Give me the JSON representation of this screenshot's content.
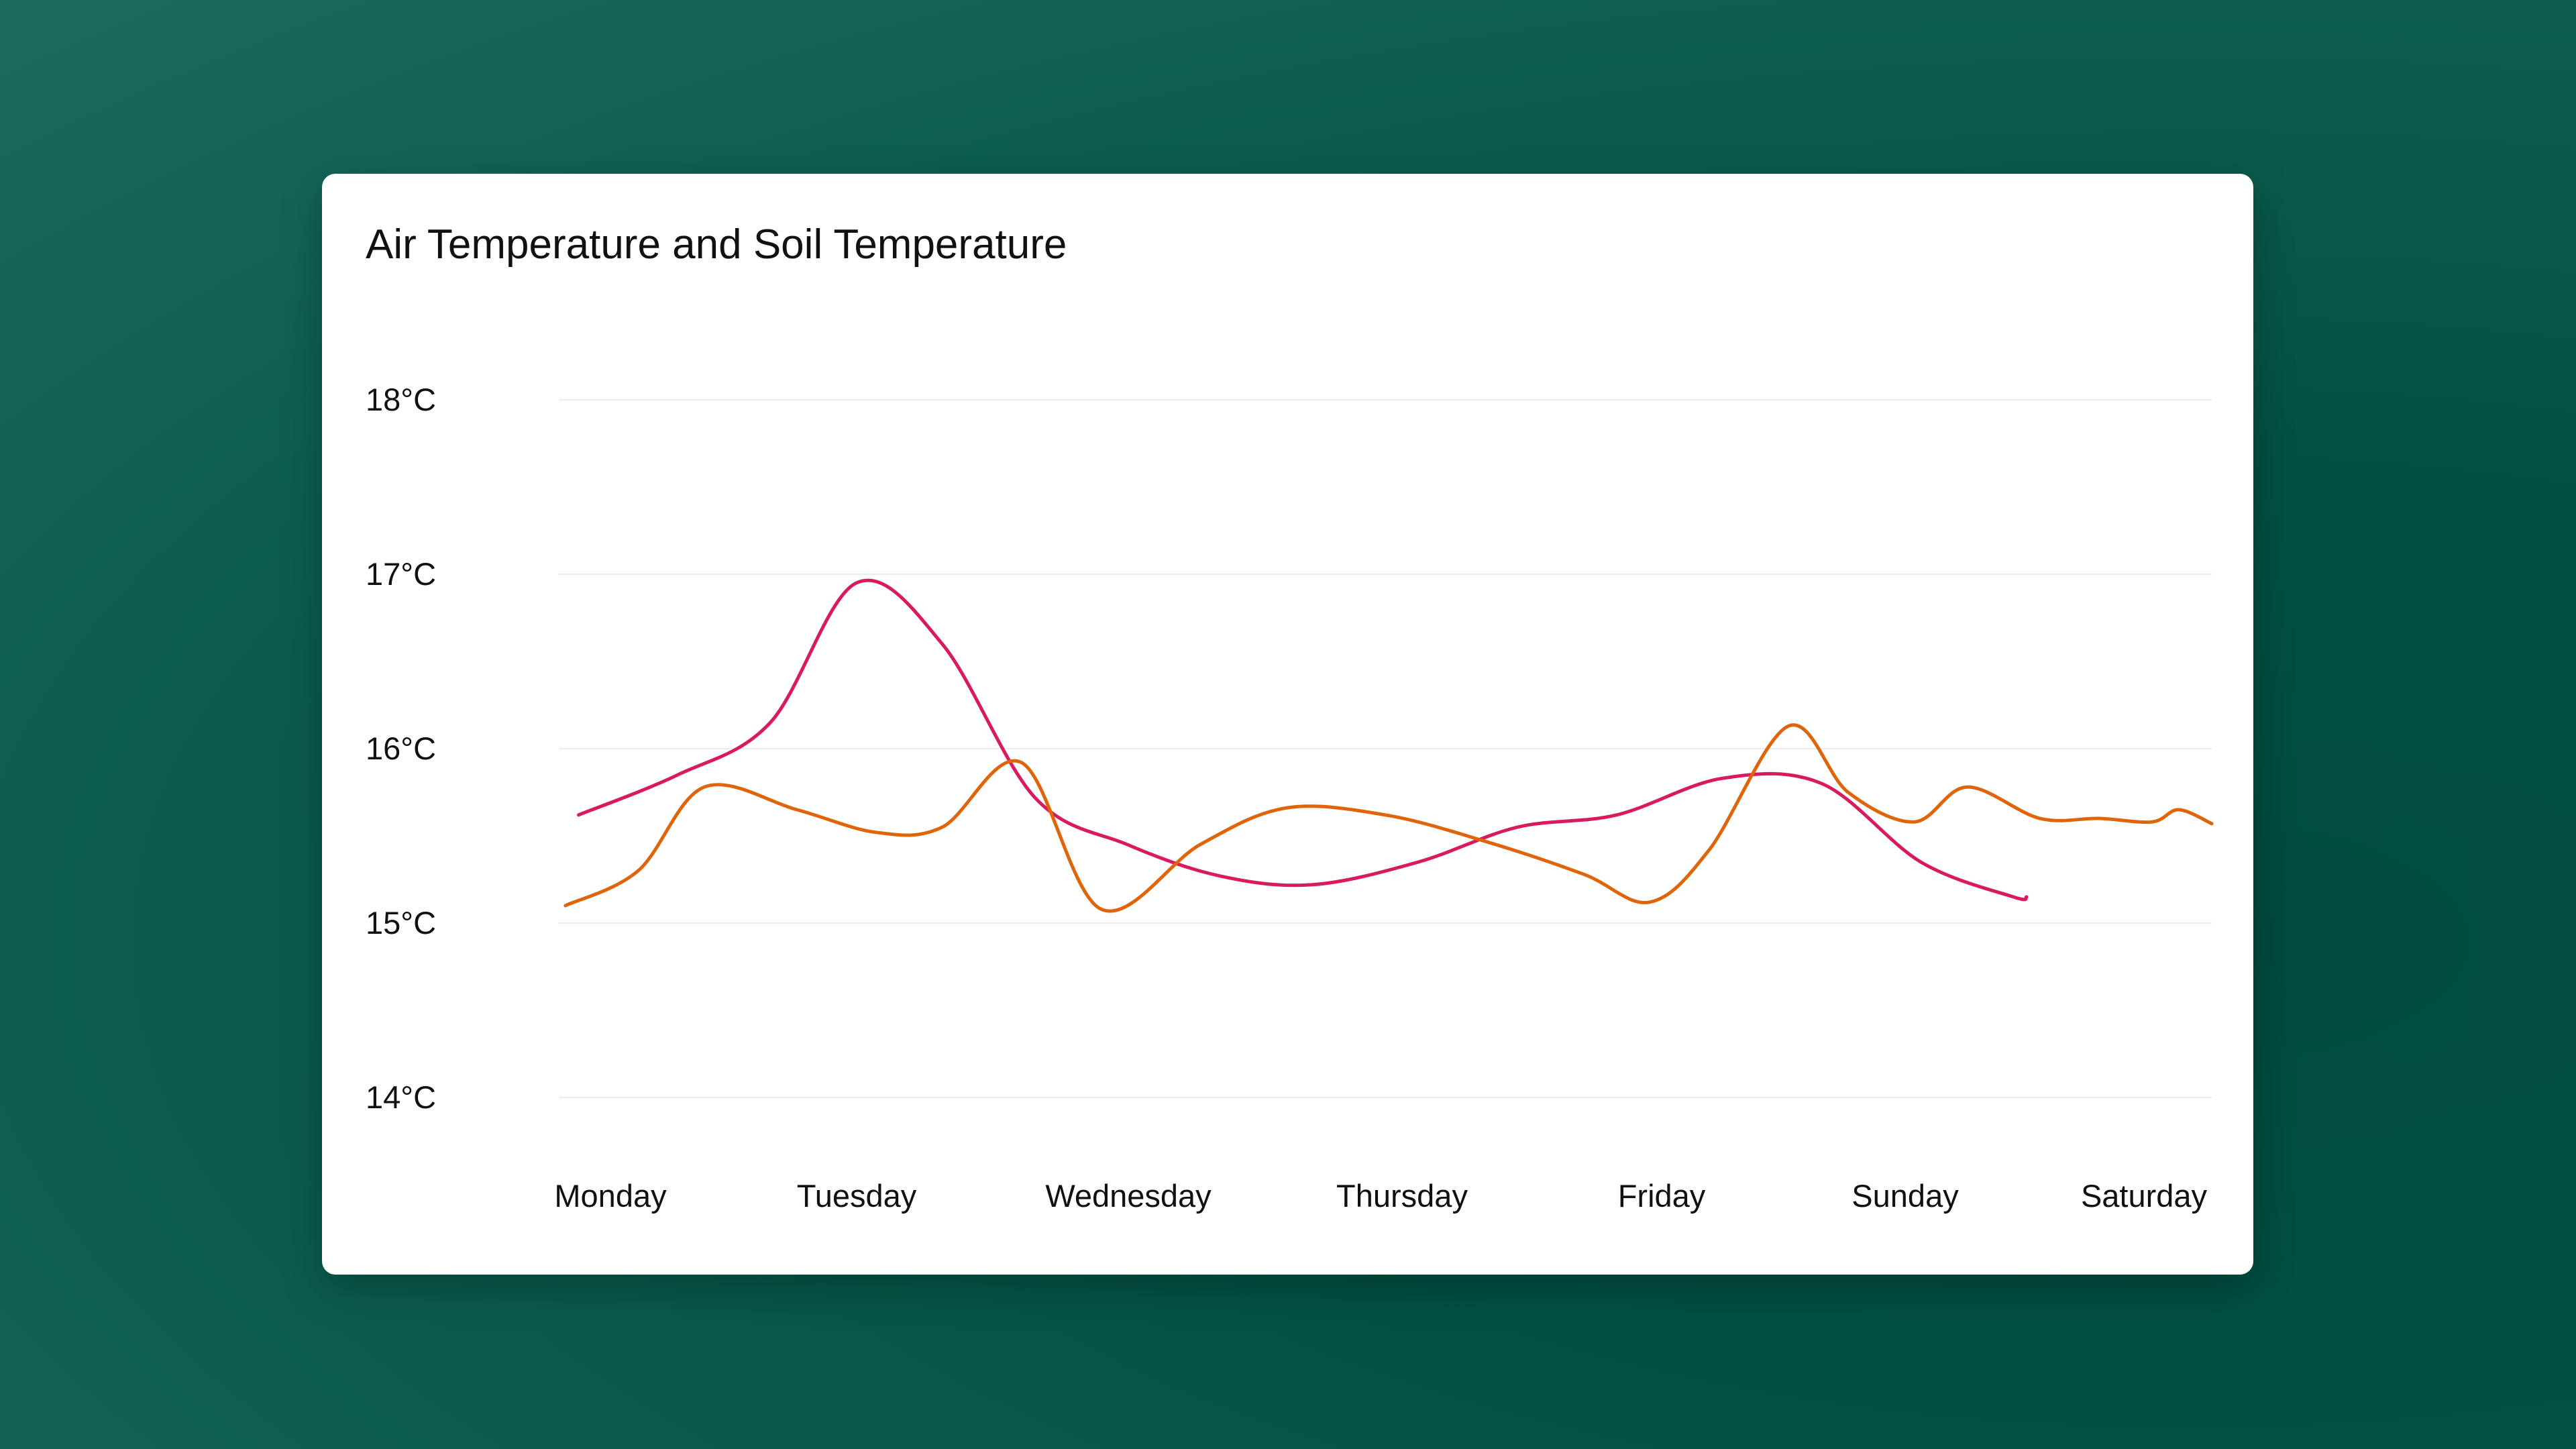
{
  "chart_data": {
    "type": "line",
    "title": "Air Temperature and Soil Temperature",
    "xlabel": "",
    "ylabel": "",
    "x": [
      "Monday",
      "Tuesday",
      "Wednesday",
      "Thursday",
      "Friday",
      "Sunday",
      "Saturday"
    ],
    "y_ticks": [
      "14°C",
      "15°C",
      "16°C",
      "17°C",
      "18°C"
    ],
    "ylim": [
      14,
      18
    ],
    "grid": true,
    "series": [
      {
        "color": "#d81b60",
        "points": [
          [
            0.03,
            15.62
          ],
          [
            0.18,
            15.85
          ],
          [
            0.32,
            16.15
          ],
          [
            0.45,
            16.95
          ],
          [
            0.58,
            16.6
          ],
          [
            0.72,
            15.72
          ],
          [
            0.86,
            15.45
          ],
          [
            1.0,
            15.27
          ],
          [
            1.14,
            15.22
          ],
          [
            1.3,
            15.35
          ],
          [
            1.45,
            15.55
          ],
          [
            1.6,
            15.62
          ],
          [
            1.76,
            15.83
          ],
          [
            1.91,
            15.8
          ],
          [
            2.06,
            15.35
          ],
          [
            2.2,
            15.15
          ],
          [
            2.22,
            15.15
          ]
        ]
      },
      {
        "color": "#e0650a",
        "points": [
          [
            0.01,
            15.1
          ],
          [
            0.12,
            15.3
          ],
          [
            0.22,
            15.78
          ],
          [
            0.36,
            15.65
          ],
          [
            0.48,
            15.52
          ],
          [
            0.58,
            15.55
          ],
          [
            0.7,
            15.92
          ],
          [
            0.82,
            15.08
          ],
          [
            0.97,
            15.45
          ],
          [
            1.1,
            15.66
          ],
          [
            1.25,
            15.62
          ],
          [
            1.4,
            15.47
          ],
          [
            1.55,
            15.28
          ],
          [
            1.65,
            15.12
          ],
          [
            1.74,
            15.42
          ],
          [
            1.86,
            16.13
          ],
          [
            1.95,
            15.75
          ],
          [
            2.05,
            15.58
          ],
          [
            2.13,
            15.78
          ],
          [
            2.24,
            15.6
          ],
          [
            2.33,
            15.6
          ],
          [
            2.41,
            15.58
          ],
          [
            2.45,
            15.65
          ],
          [
            2.5,
            15.57
          ]
        ]
      }
    ]
  }
}
